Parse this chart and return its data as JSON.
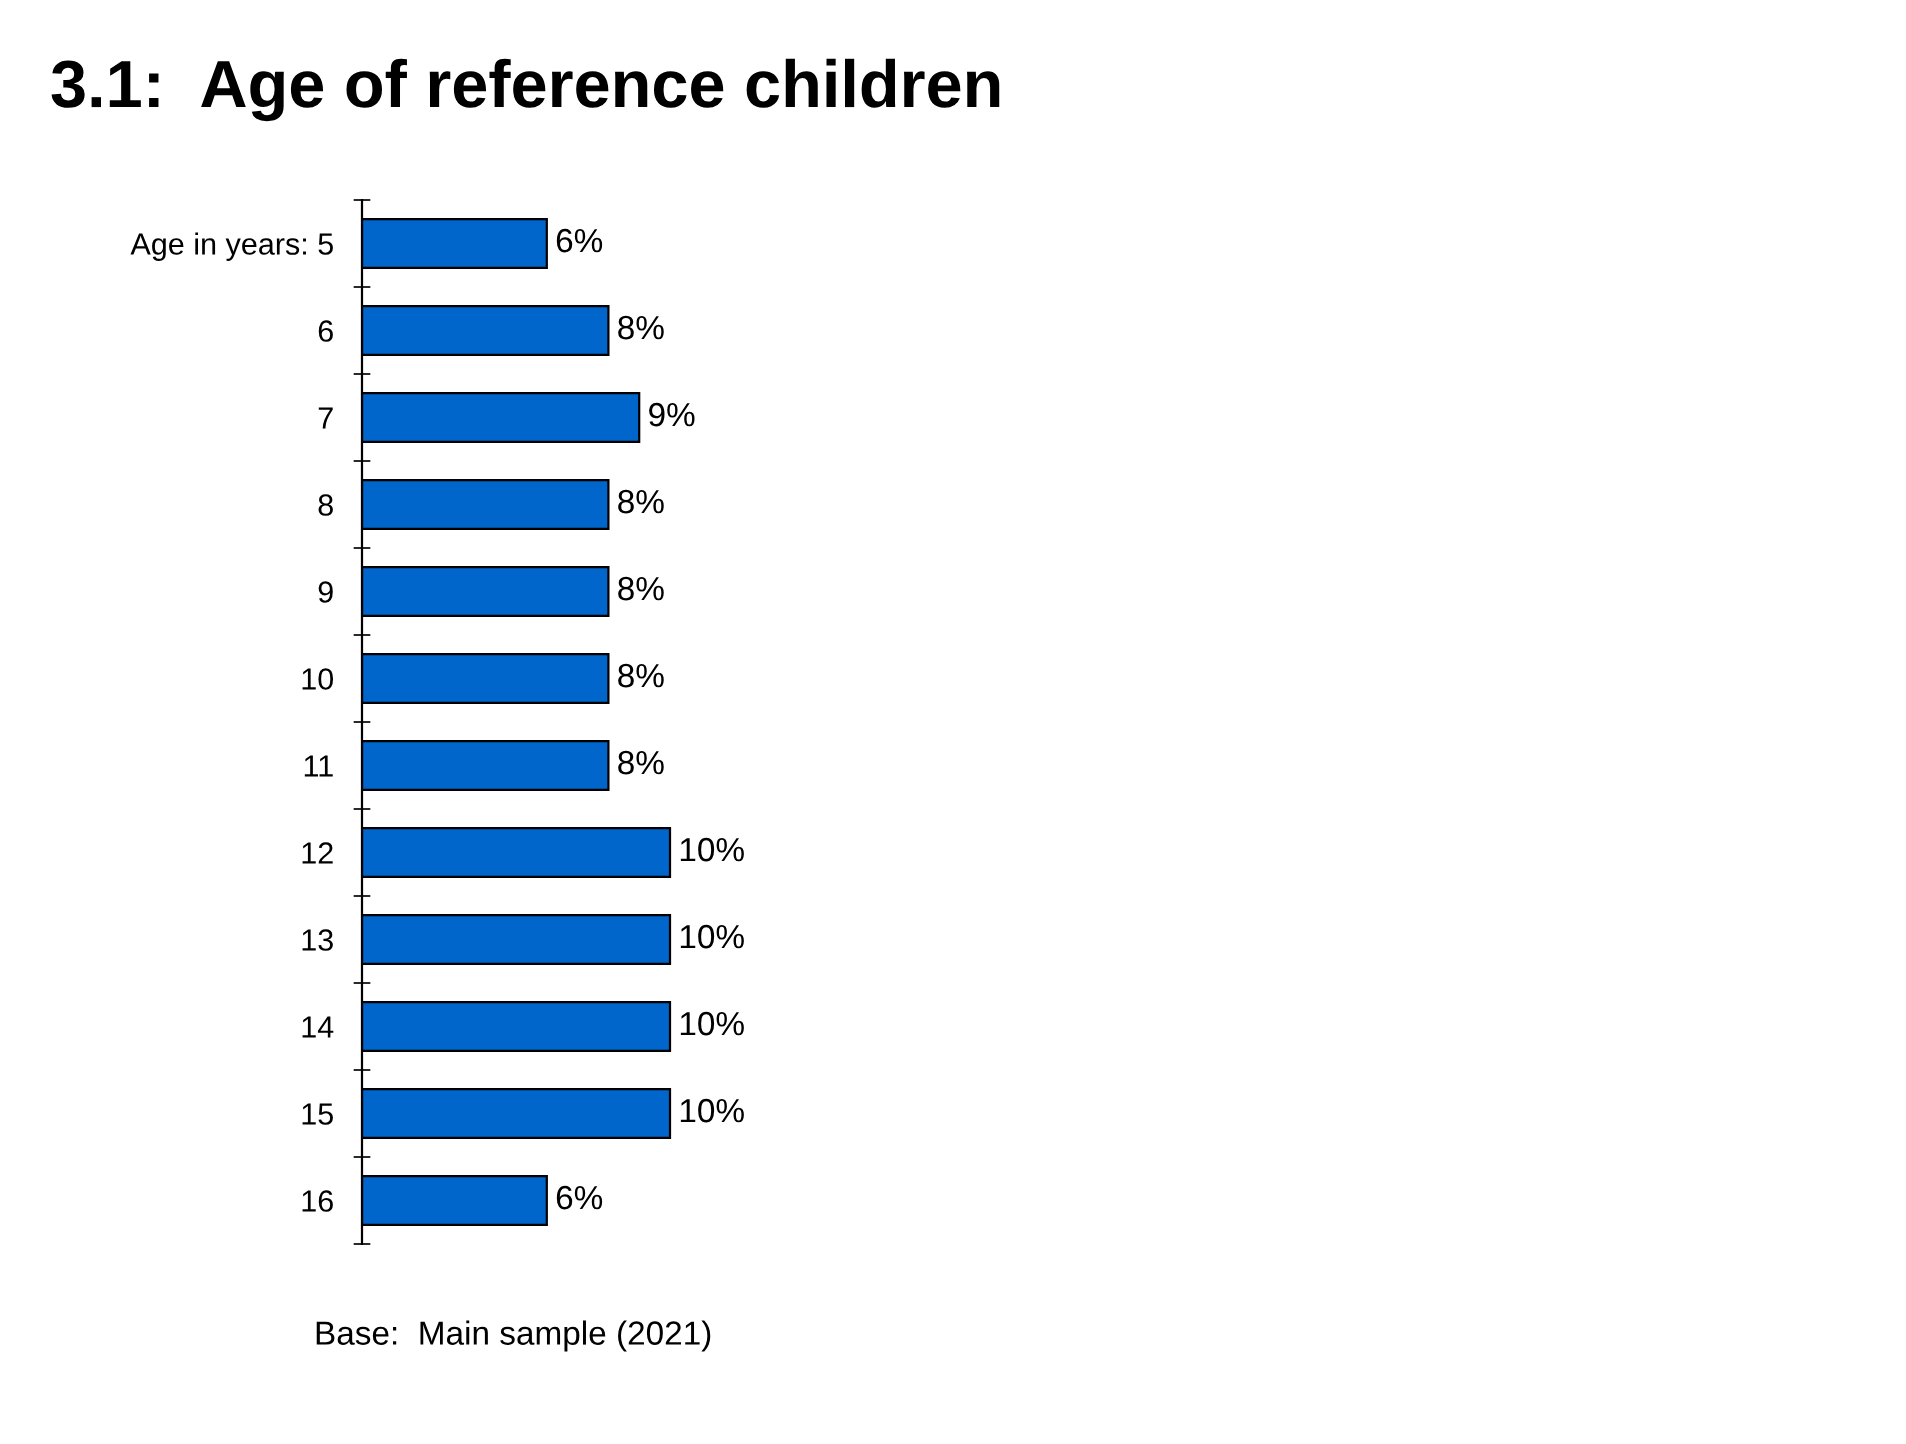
{
  "chart_data": {
    "type": "bar",
    "orientation": "horizontal",
    "title": "3.1:  Age of reference children",
    "categories": [
      "Age in years: 5",
      "6",
      "7",
      "8",
      "9",
      "10",
      "11",
      "12",
      "13",
      "14",
      "15",
      "16"
    ],
    "values": [
      6,
      8,
      9,
      8,
      8,
      8,
      8,
      10,
      10,
      10,
      10,
      6
    ],
    "value_labels": [
      "6%",
      "8%",
      "9%",
      "8%",
      "8%",
      "8%",
      "8%",
      "10%",
      "10%",
      "10%",
      "10%",
      "6%"
    ],
    "color": "#0066cc",
    "annotations": [
      "Base:  Main sample (2021)"
    ]
  }
}
